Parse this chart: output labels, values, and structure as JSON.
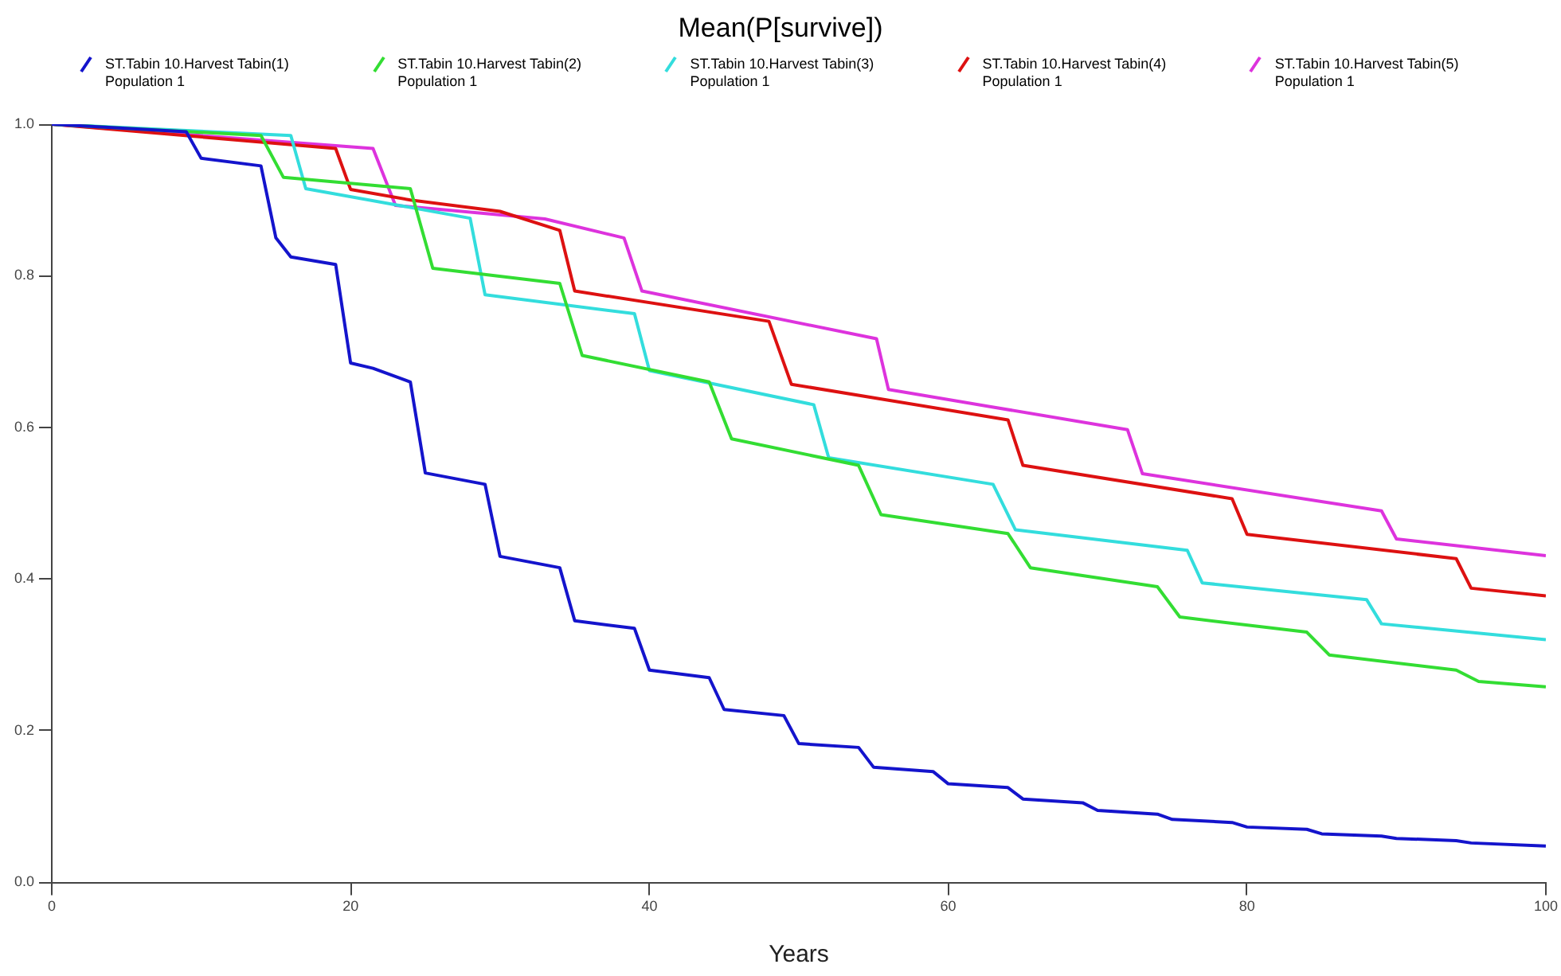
{
  "chart_data": {
    "type": "line",
    "title": "Mean(P[survive])",
    "xlabel": "Years",
    "marker": "none",
    "legend": "top",
    "grid": false,
    "xlim": [
      0,
      100
    ],
    "xticks": [
      0,
      20,
      40,
      60,
      80,
      100
    ],
    "ylim": [
      0,
      1
    ],
    "yticks": [
      {
        "value": 0,
        "label": "0.0"
      },
      {
        "value": 0.2,
        "label": "0.2"
      },
      {
        "value": 0.4,
        "label": "0.4"
      },
      {
        "value": 0.6,
        "label": "0.6"
      },
      {
        "value": 0.8,
        "label": "0.8"
      },
      {
        "value": 1,
        "label": "1.0"
      }
    ],
    "series": [
      {
        "name": "ST.Tabin 10.Harvest Tabin(1)\nPopulation 1",
        "color": "#1414cc",
        "x": [
          0,
          9,
          10,
          14,
          15,
          16,
          19,
          20,
          21.5,
          24,
          25,
          29,
          30,
          34,
          35,
          39,
          40,
          44,
          45,
          49,
          50,
          54,
          55,
          59,
          60,
          64,
          65,
          69,
          70,
          74,
          75,
          79,
          80,
          84,
          85,
          89,
          90,
          94,
          95,
          100
        ],
        "values": [
          1,
          0.99,
          0.955,
          0.945,
          0.85,
          0.825,
          0.815,
          0.685,
          0.678,
          0.66,
          0.54,
          0.525,
          0.43,
          0.415,
          0.345,
          0.335,
          0.28,
          0.27,
          0.228,
          0.22,
          0.183,
          0.178,
          0.152,
          0.146,
          0.13,
          0.125,
          0.11,
          0.105,
          0.095,
          0.09,
          0.083,
          0.079,
          0.073,
          0.07,
          0.064,
          0.061,
          0.058,
          0.055,
          0.052,
          0.048
        ]
      },
      {
        "name": "ST.Tabin 10.Harvest Tabin(2)\nPopulation 1",
        "color": "#33dd33",
        "x": [
          0,
          14,
          15.5,
          24,
          25.5,
          34,
          35.5,
          44,
          45.5,
          54,
          55.5,
          64,
          65.5,
          74,
          75.5,
          84,
          85.5,
          94,
          95.5,
          100
        ],
        "values": [
          1,
          0.985,
          0.93,
          0.915,
          0.81,
          0.79,
          0.695,
          0.66,
          0.585,
          0.55,
          0.485,
          0.46,
          0.415,
          0.39,
          0.35,
          0.33,
          0.3,
          0.28,
          0.265,
          0.258
        ]
      },
      {
        "name": "ST.Tabin 10.Harvest Tabin(3)\nPopulation 1",
        "color": "#33dddd",
        "x": [
          0,
          16,
          17,
          28,
          29,
          39,
          40,
          51,
          52,
          63,
          64.5,
          76,
          77,
          88,
          89,
          100
        ],
        "values": [
          1,
          0.985,
          0.915,
          0.876,
          0.775,
          0.75,
          0.675,
          0.63,
          0.56,
          0.525,
          0.465,
          0.438,
          0.395,
          0.373,
          0.341,
          0.32
        ]
      },
      {
        "name": "ST.Tabin 10.Harvest Tabin(4)\nPopulation 1",
        "color": "#dd1111",
        "x": [
          0,
          19,
          20,
          24,
          30,
          34,
          35,
          48,
          49.5,
          64,
          65,
          79,
          80,
          94,
          95,
          100
        ],
        "values": [
          1,
          0.968,
          0.914,
          0.9,
          0.885,
          0.86,
          0.78,
          0.74,
          0.657,
          0.61,
          0.55,
          0.506,
          0.459,
          0.427,
          0.388,
          0.378
        ]
      },
      {
        "name": "ST.Tabin 10.Harvest Tabin(5)\nPopulation 1",
        "color": "#dd33dd",
        "x": [
          0,
          10,
          21.5,
          23,
          33,
          38.3,
          39.5,
          55.2,
          56,
          72,
          73,
          89,
          90,
          100
        ],
        "values": [
          1,
          0.985,
          0.968,
          0.893,
          0.875,
          0.85,
          0.78,
          0.717,
          0.65,
          0.597,
          0.539,
          0.49,
          0.453,
          0.431
        ]
      }
    ]
  }
}
